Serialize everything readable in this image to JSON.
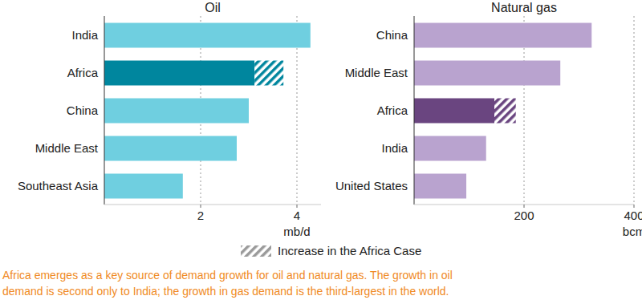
{
  "chart_data": [
    {
      "type": "bar",
      "orientation": "horizontal",
      "stacked": true,
      "grid": true,
      "title": "Oil",
      "x_label": "mb/d",
      "categories": [
        "India",
        "Africa",
        "China",
        "Middle East",
        "Southeast Asia"
      ],
      "series": [
        {
          "colors": [
            "#6fcfe0",
            "#00869e",
            "#6fcfe0",
            "#6fcfe0",
            "#6fcfe0"
          ],
          "values": [
            4.28,
            3.12,
            3.0,
            2.75,
            1.63
          ]
        },
        {
          "name": "Increase in the Africa Case",
          "color": "#00869e",
          "values": [
            null,
            0.6,
            null,
            null,
            null
          ]
        }
      ],
      "xlim": [
        0,
        4.5
      ],
      "xticks": [
        2,
        4
      ],
      "legend": "bottom"
    },
    {
      "type": "bar",
      "orientation": "horizontal",
      "stacked": true,
      "grid": true,
      "title": "Natural gas",
      "x_label": "bcm",
      "categories": [
        "China",
        "Middle East",
        "Africa",
        "India",
        "United States"
      ],
      "series": [
        {
          "colors": [
            "#b9a3cf",
            "#b9a3cf",
            "#6a4580",
            "#b9a3cf",
            "#b9a3cf"
          ],
          "values": [
            323,
            266,
            146,
            131,
            95
          ]
        },
        {
          "color": "#6a4580",
          "values": [
            null,
            null,
            39,
            null,
            null
          ]
        }
      ],
      "xlim": [
        0,
        400
      ],
      "xticks": [
        200,
        400
      ]
    }
  ],
  "caption": [
    "Africa emerges as a key source of demand growth for oil and natural gas. The growth in oil",
    "demand is second only to India; the growth in gas demand is the third-largest in the world."
  ]
}
